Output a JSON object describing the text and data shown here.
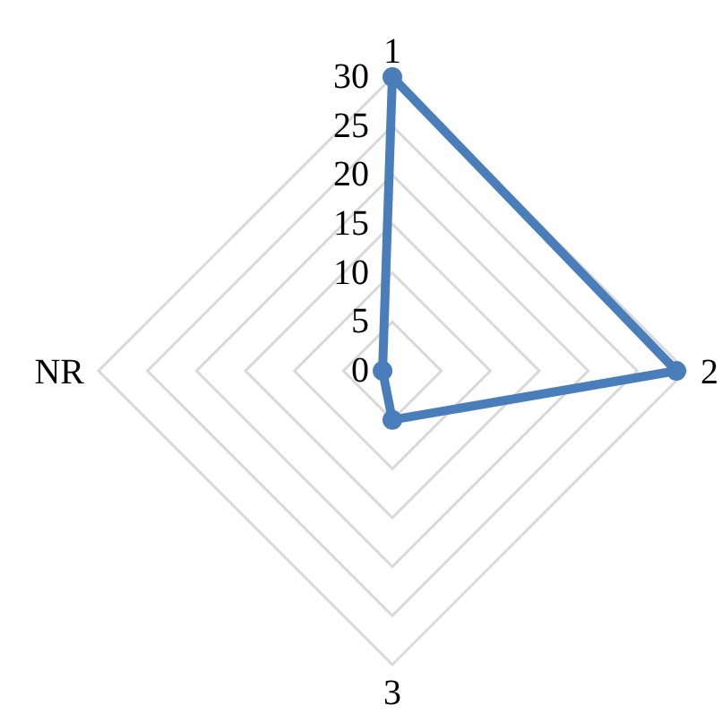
{
  "chart_data": {
    "type": "radar",
    "categories": [
      "1",
      "2",
      "3",
      "NR"
    ],
    "series": [
      {
        "color": "#4a7ebb",
        "values": [
          30,
          29,
          5,
          1
        ]
      }
    ],
    "ylim": [
      0,
      30
    ],
    "yticks": [
      0,
      5,
      10,
      15,
      20,
      25,
      30
    ],
    "grid": true,
    "marker": "circle",
    "line_style": "solid"
  }
}
